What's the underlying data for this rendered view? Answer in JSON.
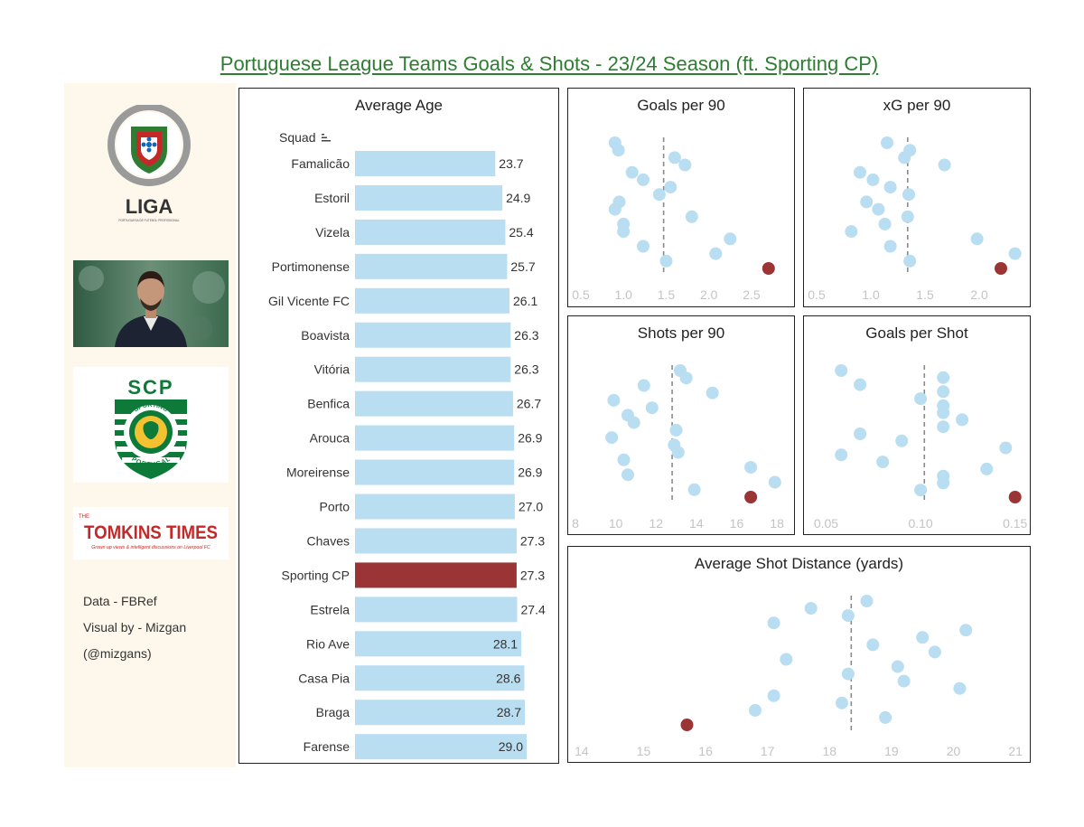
{
  "title": "Portuguese League Teams Goals & Shots - 23/24 Season (ft. Sporting CP)",
  "sidebar": {
    "liga_text": "LIGA",
    "liga_subtext": "PORTUGUESA DE FUTEBOL PROFISSIONAL",
    "scp_text": "SCP",
    "scp_ring_top": "SPORTING",
    "scp_ring_bottom": "PORTUGAL",
    "tomkins_small": "THE",
    "tomkins_main": "TOMKINS TIMES",
    "tomkins_tagline": "Grown up views & intelligent discussions on Liverpool FC",
    "credits": [
      "Data - FBRef",
      "Visual by - Mizgan",
      "(@mizgans)"
    ]
  },
  "colors": {
    "bar": "#b9ddf1",
    "highlight": "#9b3434",
    "point": "#b9ddf1",
    "title": "#2e7d32",
    "sidebar": "#fdf7ec"
  },
  "chart_data": [
    {
      "type": "bar",
      "title": "Average Age",
      "header": "Squad",
      "sort_icon": "sort-descending-icon",
      "highlight": "Sporting CP",
      "categories": [
        "Famalicão",
        "Estoril",
        "Vizela",
        "Portimonense",
        "Gil Vicente FC",
        "Boavista",
        "Vitória",
        "Benfica",
        "Arouca",
        "Moreirense",
        "Porto",
        "Chaves",
        "Sporting CP",
        "Estrela",
        "Rio Ave",
        "Casa Pia",
        "Braga",
        "Farense"
      ],
      "values": [
        23.7,
        24.9,
        25.4,
        25.7,
        26.1,
        26.3,
        26.3,
        26.7,
        26.9,
        26.9,
        27.0,
        27.3,
        27.3,
        27.4,
        28.1,
        28.6,
        28.7,
        29.0
      ],
      "labels": [
        "23.7",
        "24.9",
        "25.4",
        "25.7",
        "26.1",
        "26.3",
        "26.3",
        "26.7",
        "26.9",
        "26.9",
        "27.0",
        "27.3",
        "27.3",
        "27.4",
        "28.1",
        "28.6",
        "28.7",
        "29.0"
      ]
    },
    {
      "type": "scatter",
      "title": "Goals per 90",
      "xlim": [
        0.5,
        2.85
      ],
      "ticks": [
        {
          "value": 0.5,
          "label": "0.5"
        },
        {
          "value": 1.0,
          "label": "1.0"
        },
        {
          "value": 1.5,
          "label": "1.5"
        },
        {
          "value": 2.0,
          "label": "2.0"
        },
        {
          "value": 2.5,
          "label": "2.5"
        }
      ],
      "reference_line": 1.47,
      "x": [
        0.9,
        0.94,
        1.6,
        1.72,
        1.1,
        1.23,
        1.55,
        1.42,
        0.95,
        0.9,
        1.8,
        1.0,
        1.0,
        2.25,
        1.23,
        2.08,
        1.5
      ],
      "highlight_x": 2.7
    },
    {
      "type": "scatter",
      "title": "xG per 90",
      "xlim": [
        0.5,
        2.35
      ],
      "ticks": [
        {
          "value": 0.5,
          "label": "0.5"
        },
        {
          "value": 1.0,
          "label": "1.0"
        },
        {
          "value": 1.5,
          "label": "1.5"
        },
        {
          "value": 2.0,
          "label": "2.0"
        }
      ],
      "reference_line": 1.34,
      "x": [
        1.15,
        1.36,
        1.31,
        1.68,
        0.9,
        1.02,
        1.18,
        1.35,
        0.96,
        1.07,
        1.34,
        1.13,
        0.82,
        1.98,
        1.18,
        2.33,
        1.36
      ],
      "highlight_x": 2.2
    },
    {
      "type": "scatter",
      "title": "Shots per 90",
      "xlim": [
        8,
        18.4
      ],
      "ticks": [
        {
          "value": 8,
          "label": "8"
        },
        {
          "value": 10,
          "label": "10"
        },
        {
          "value": 12,
          "label": "12"
        },
        {
          "value": 14,
          "label": "14"
        },
        {
          "value": 16,
          "label": "16"
        },
        {
          "value": 18,
          "label": "18"
        }
      ],
      "reference_line": 12.8,
      "x": [
        13.2,
        13.5,
        11.4,
        14.8,
        9.9,
        11.8,
        10.6,
        10.9,
        13.0,
        9.8,
        12.9,
        13.1,
        10.4,
        16.7,
        10.6,
        17.9,
        13.9
      ],
      "highlight_x": 16.7
    },
    {
      "type": "scatter",
      "title": "Goals per Shot",
      "xlim": [
        0.045,
        0.153
      ],
      "ticks": [
        {
          "value": 0.05,
          "label": "0.05"
        },
        {
          "value": 0.1,
          "label": "0.10"
        },
        {
          "value": 0.15,
          "label": "0.15"
        }
      ],
      "reference_line": 0.102,
      "x": [
        0.058,
        0.112,
        0.068,
        0.112,
        0.1,
        0.112,
        0.112,
        0.122,
        0.112,
        0.068,
        0.09,
        0.145,
        0.058,
        0.08,
        0.135,
        0.112,
        0.112,
        0.1
      ],
      "highlight_x": 0.15
    },
    {
      "type": "scatter",
      "title": "Average Shot Distance (yards)",
      "xlim": [
        13.9,
        21.1
      ],
      "ticks": [
        {
          "value": 14,
          "label": "14"
        },
        {
          "value": 15,
          "label": "15"
        },
        {
          "value": 16,
          "label": "16"
        },
        {
          "value": 17,
          "label": "17"
        },
        {
          "value": 18,
          "label": "18"
        },
        {
          "value": 19,
          "label": "19"
        },
        {
          "value": 20,
          "label": "20"
        },
        {
          "value": 21,
          "label": "21"
        }
      ],
      "reference_line": 18.35,
      "x": [
        18.6,
        17.7,
        18.3,
        17.1,
        20.2,
        19.5,
        18.7,
        19.7,
        17.3,
        19.1,
        18.3,
        19.2,
        20.1,
        17.1,
        18.2,
        16.8,
        18.9
      ],
      "highlight_x": 15.7
    }
  ]
}
